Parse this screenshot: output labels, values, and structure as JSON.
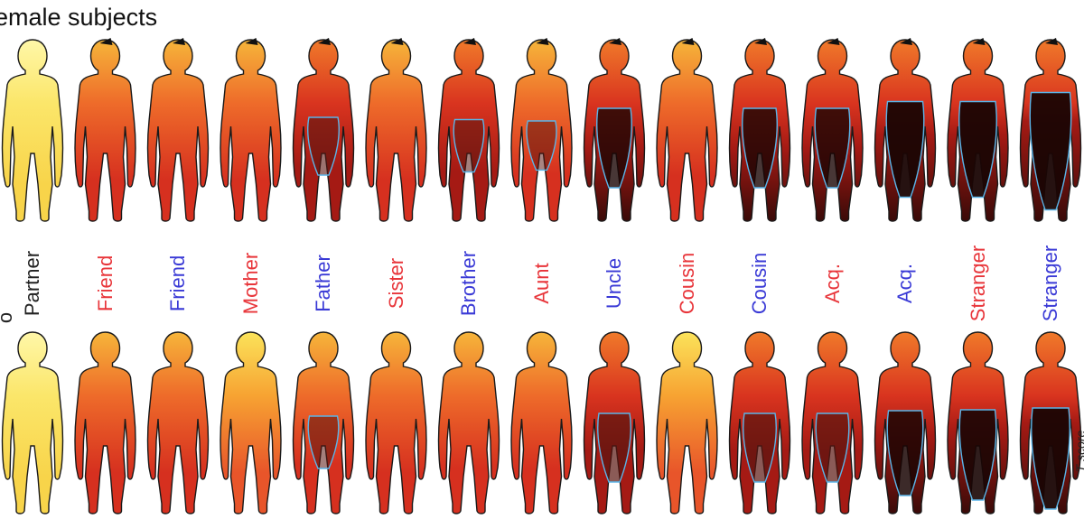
{
  "title": "emale subjects",
  "side_label": "T score",
  "partial_label": "o",
  "colors": {
    "female": "#e8353a",
    "male": "#3a3ad6",
    "neutral": "#222222",
    "outline": "#5ab4e8"
  },
  "figures": [
    {
      "label": "Partner",
      "gender": "neutral",
      "top_map": "yellow",
      "bottom_map": "yellow",
      "top_dark": 0.0,
      "bottom_dark": 0.0
    },
    {
      "label": "Friend",
      "gender": "female",
      "top_map": "orange",
      "bottom_map": "orange",
      "top_dark": 0.05,
      "bottom_dark": 0.05
    },
    {
      "label": "Friend",
      "gender": "male",
      "top_map": "orange",
      "bottom_map": "orange",
      "top_dark": 0.05,
      "bottom_dark": 0.05
    },
    {
      "label": "Mother",
      "gender": "female",
      "top_map": "orange",
      "bottom_map": "yellow-orange",
      "top_dark": 0.05,
      "bottom_dark": 0.05
    },
    {
      "label": "Father",
      "gender": "male",
      "top_map": "red",
      "bottom_map": "orange",
      "top_dark": 0.2,
      "bottom_dark": 0.15
    },
    {
      "label": "Sister",
      "gender": "female",
      "top_map": "orange",
      "bottom_map": "orange",
      "top_dark": 0.05,
      "bottom_dark": 0.05
    },
    {
      "label": "Brother",
      "gender": "male",
      "top_map": "red",
      "bottom_map": "orange",
      "top_dark": 0.15,
      "bottom_dark": 0.1
    },
    {
      "label": "Aunt",
      "gender": "female",
      "top_map": "orange",
      "bottom_map": "orange",
      "top_dark": 0.12,
      "bottom_dark": 0.1
    },
    {
      "label": "Uncle",
      "gender": "male",
      "top_map": "red",
      "bottom_map": "red",
      "top_dark": 0.4,
      "bottom_dark": 0.3
    },
    {
      "label": "Cousin",
      "gender": "female",
      "top_map": "orange",
      "bottom_map": "yellow-orange",
      "top_dark": 0.1,
      "bottom_dark": 0.05
    },
    {
      "label": "Cousin",
      "gender": "male",
      "top_map": "red",
      "bottom_map": "red",
      "top_dark": 0.4,
      "bottom_dark": 0.3
    },
    {
      "label": "Acq.",
      "gender": "female",
      "top_map": "red",
      "bottom_map": "red",
      "top_dark": 0.4,
      "bottom_dark": 0.3
    },
    {
      "label": "Acq.",
      "gender": "male",
      "top_map": "red",
      "bottom_map": "red",
      "top_dark": 0.55,
      "bottom_dark": 0.45
    },
    {
      "label": "Stranger",
      "gender": "female",
      "top_map": "red",
      "bottom_map": "red",
      "top_dark": 0.55,
      "bottom_dark": 0.5
    },
    {
      "label": "Stranger",
      "gender": "male",
      "top_map": "red",
      "bottom_map": "red",
      "top_dark": 0.75,
      "bottom_dark": 0.6
    }
  ]
}
